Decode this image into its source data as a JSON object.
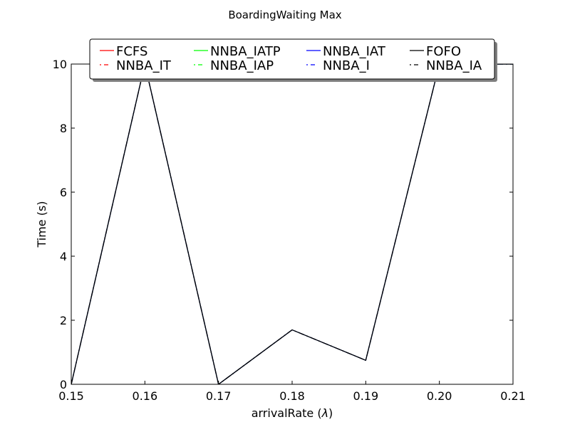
{
  "chart_data": {
    "type": "line",
    "title": "BoardingWaiting Max",
    "xlabel_prefix": "arrivalRate (",
    "xlabel_symbol": "λ",
    "xlabel_suffix": ")",
    "ylabel": "Time (s)",
    "xlim": [
      0.15,
      0.21
    ],
    "ylim": [
      0,
      10
    ],
    "xticks": [
      "0.15",
      "0.16",
      "0.17",
      "0.18",
      "0.19",
      "0.20",
      "0.21"
    ],
    "yticks": [
      "0",
      "2",
      "4",
      "6",
      "8",
      "10"
    ],
    "grid": false,
    "legend_placement": "top-center",
    "x": [
      0.15,
      0.16,
      0.17,
      0.18,
      0.19,
      0.2,
      0.21
    ],
    "series": [
      {
        "name": "FCFS",
        "color": "#ff0000",
        "style": "solid",
        "values": [
          0,
          10,
          0,
          1.7,
          0.75,
          10,
          10
        ]
      },
      {
        "name": "NNBA_IT",
        "color": "#ff0000",
        "style": "dashdot",
        "values": [
          0,
          10,
          0,
          1.7,
          0.75,
          10,
          10
        ]
      },
      {
        "name": "NNBA_IATP",
        "color": "#00ff00",
        "style": "solid",
        "values": [
          0,
          10,
          0,
          1.7,
          0.75,
          10,
          10
        ]
      },
      {
        "name": "NNBA_IAP",
        "color": "#00ff00",
        "style": "dashdot",
        "values": [
          0,
          10,
          0,
          1.7,
          0.75,
          10,
          10
        ]
      },
      {
        "name": "NNBA_IAT",
        "color": "#0000ff",
        "style": "solid",
        "values": [
          0,
          10,
          0,
          1.7,
          0.75,
          10,
          10
        ]
      },
      {
        "name": "NNBA_I",
        "color": "#0000ff",
        "style": "dashdot",
        "values": [
          0,
          10,
          0,
          1.7,
          0.75,
          10,
          10
        ]
      },
      {
        "name": "FOFO",
        "color": "#000000",
        "style": "solid",
        "values": [
          0,
          10,
          0,
          1.7,
          0.75,
          10,
          10
        ]
      },
      {
        "name": "NNBA_IA",
        "color": "#000000",
        "style": "dashdot",
        "values": [
          0,
          10,
          0,
          1.7,
          0.75,
          10,
          10
        ]
      }
    ]
  }
}
